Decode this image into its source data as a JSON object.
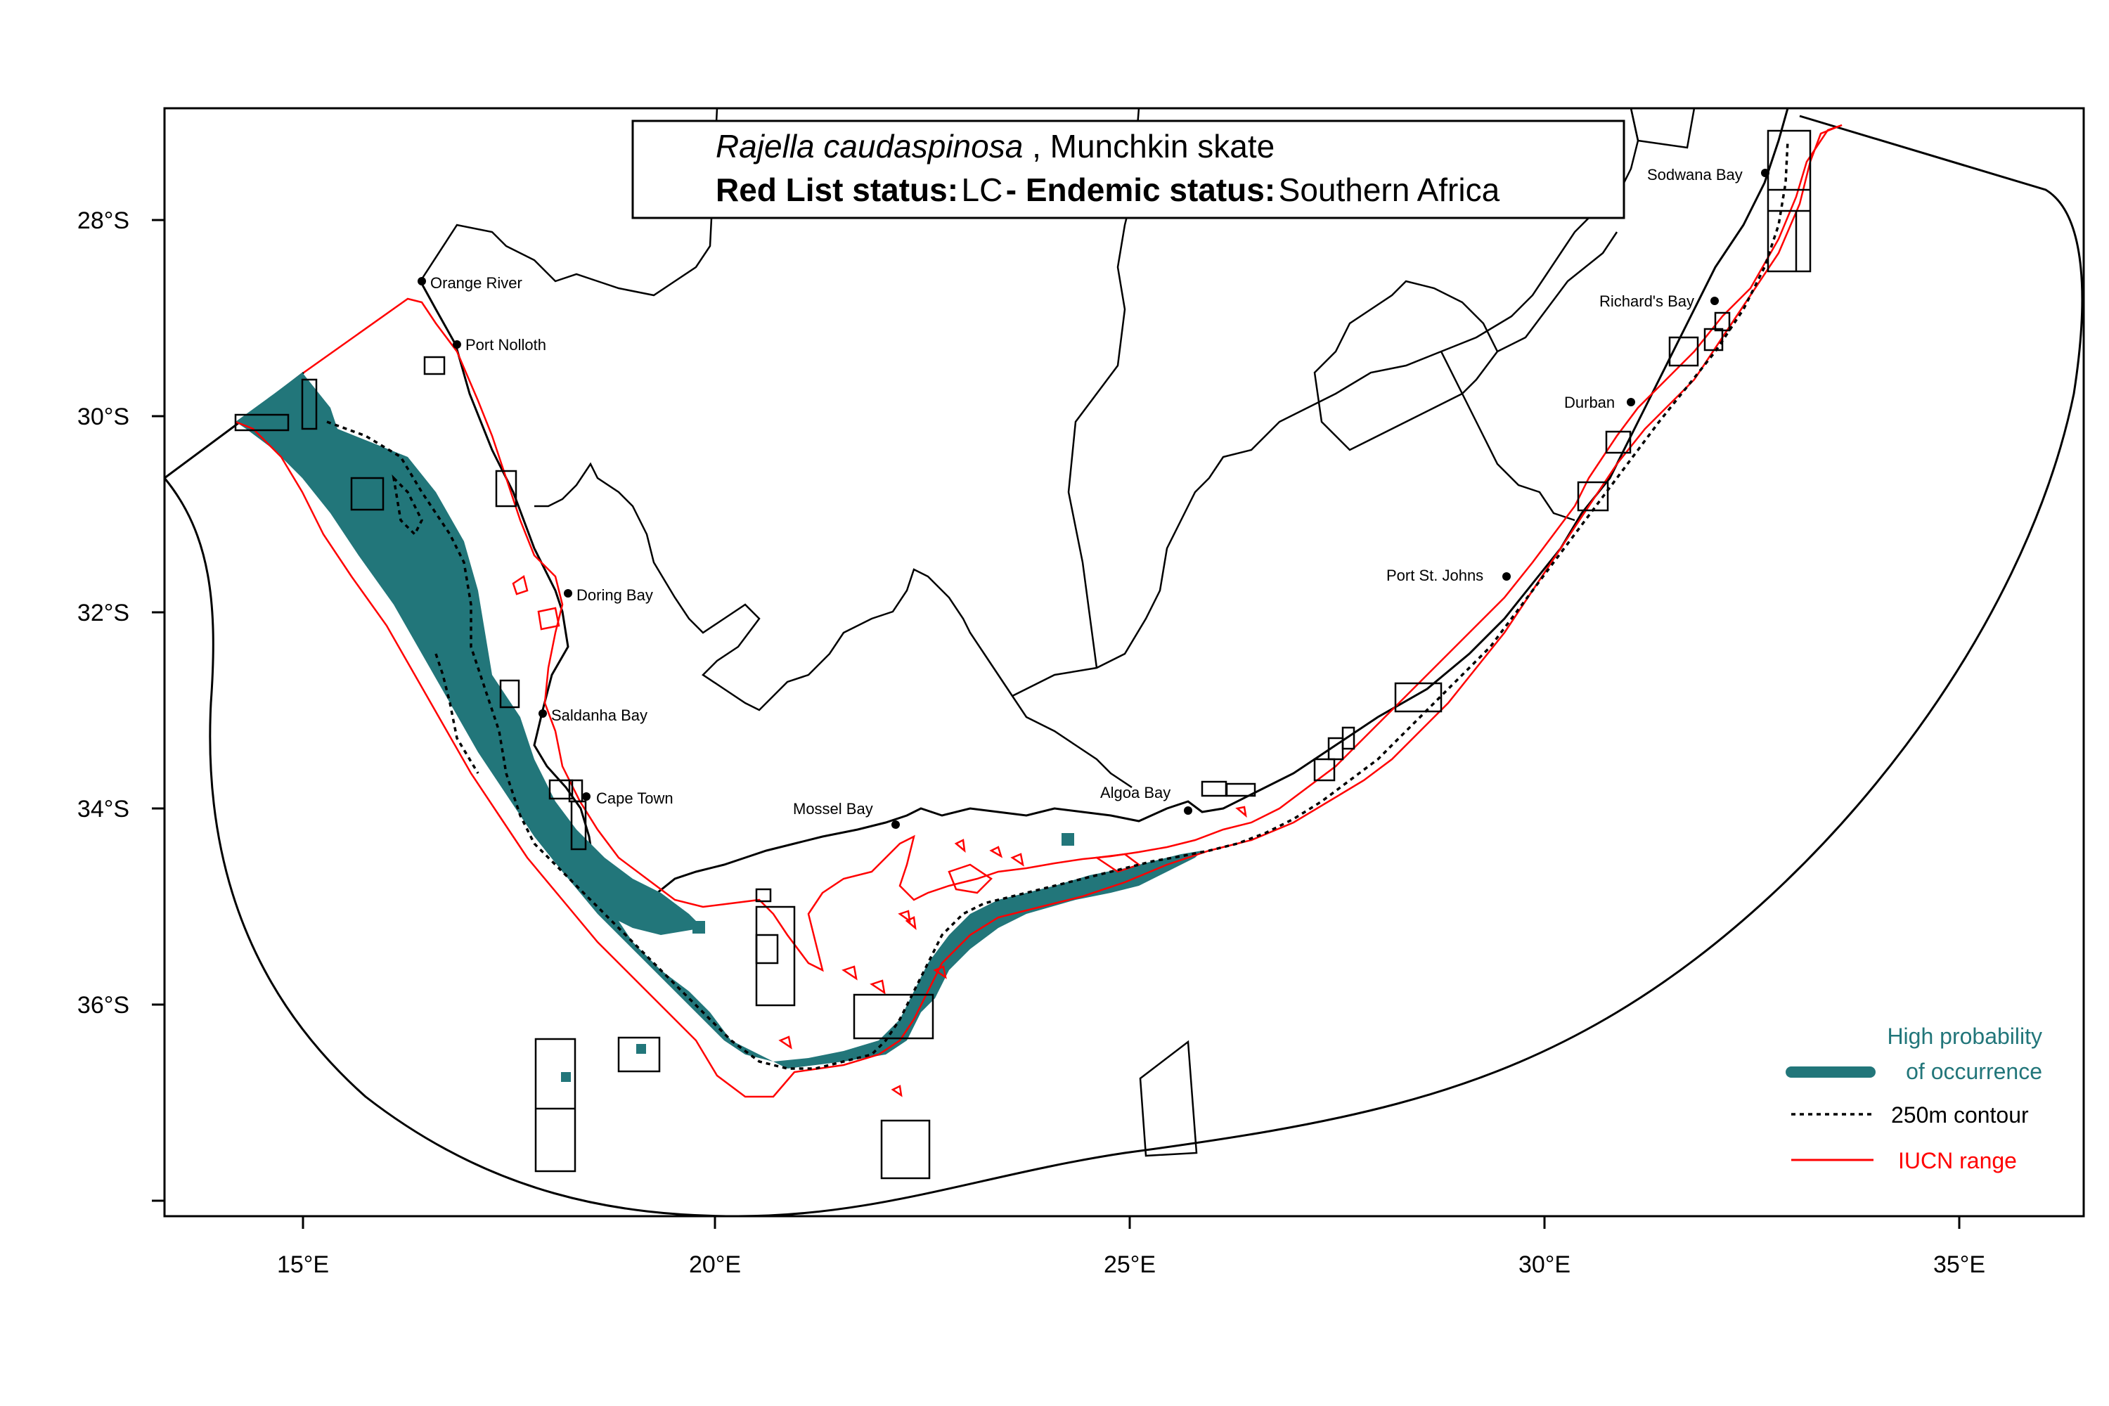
{
  "title": {
    "species": "Rajella caudaspinosa",
    "common_name": ", Munchkin skate",
    "redlist_label": "Red List status:",
    "redlist_value": "LC",
    "endemic_label": " - Endemic status:",
    "endemic_value": "Southern Africa"
  },
  "axes": {
    "x_ticks": [
      "15°E",
      "20°E",
      "25°E",
      "30°E",
      "35°E"
    ],
    "y_ticks": [
      "28°S",
      "30°S",
      "32°S",
      "34°S",
      "36°S"
    ]
  },
  "places": [
    {
      "name": "Orange River"
    },
    {
      "name": "Port Nolloth"
    },
    {
      "name": "Doring Bay"
    },
    {
      "name": "Saldanha Bay"
    },
    {
      "name": "Cape Town"
    },
    {
      "name": "Mossel Bay"
    },
    {
      "name": "Algoa Bay"
    },
    {
      "name": "Port St. Johns"
    },
    {
      "name": "Durban"
    },
    {
      "name": "Richard's Bay"
    },
    {
      "name": "Sodwana Bay"
    }
  ],
  "legend": {
    "occurrence_line1": "High probability",
    "occurrence_line2": "of occurrence",
    "contour": "250m contour",
    "iucn": "IUCN range"
  },
  "colors": {
    "occurrence": "#22767a",
    "iucn": "#ff0000",
    "outline": "#000000"
  }
}
